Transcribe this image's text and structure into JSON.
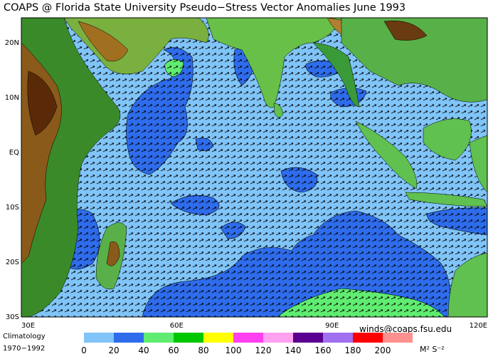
{
  "title": "COAPS @ Florida State University Pseudo−Stress Vector Anomalies  June 1993",
  "lon_labels": [
    "30E",
    "60E",
    "90E",
    "120E"
  ],
  "lat_labels": [
    "20N",
    "10N",
    "EQ",
    "10S",
    "20S",
    "30S"
  ],
  "credit": "winds@coaps.fsu.edu",
  "climatology": [
    "Climatology",
    "1970−1992"
  ],
  "colorbar": {
    "ticks": [
      0,
      20,
      40,
      60,
      80,
      100,
      120,
      140,
      160,
      180,
      200
    ],
    "colors": [
      "#80c4f8",
      "#2e6cec",
      "#60ec70",
      "#00c800",
      "#ffff00",
      "#ff40f0",
      "#ffa0f0",
      "#5a0090",
      "#a070f0",
      "#ff0000",
      "#ff9090"
    ],
    "units": "M² S⁻²"
  }
}
